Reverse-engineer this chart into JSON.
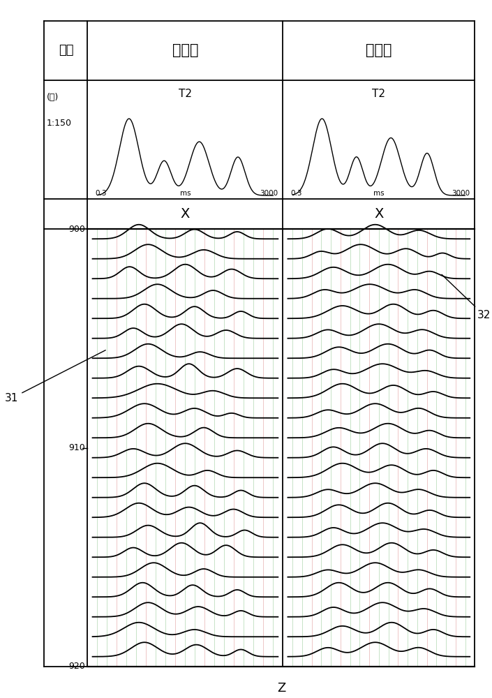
{
  "title_col1": "深度",
  "title_col2": "校正前",
  "title_col3": "校正后",
  "depth_meter": "(米)",
  "depth_scale": "1:150",
  "t2_label": "T2",
  "ms_label": "ms",
  "ms_left": "0.3",
  "ms_right": "3000",
  "x_label": "X",
  "z_label": "Z",
  "depth_min": 900,
  "depth_max": 920,
  "depth_ticks": [
    900,
    910,
    920
  ],
  "annotation_31": "31",
  "annotation_32": "32",
  "n_traces": 22,
  "n_gridlines": 20,
  "grid_color_red": "#e8b0b0",
  "grid_color_green": "#b0d8b0",
  "bg_color": "#ffffff",
  "line_color": "#000000"
}
